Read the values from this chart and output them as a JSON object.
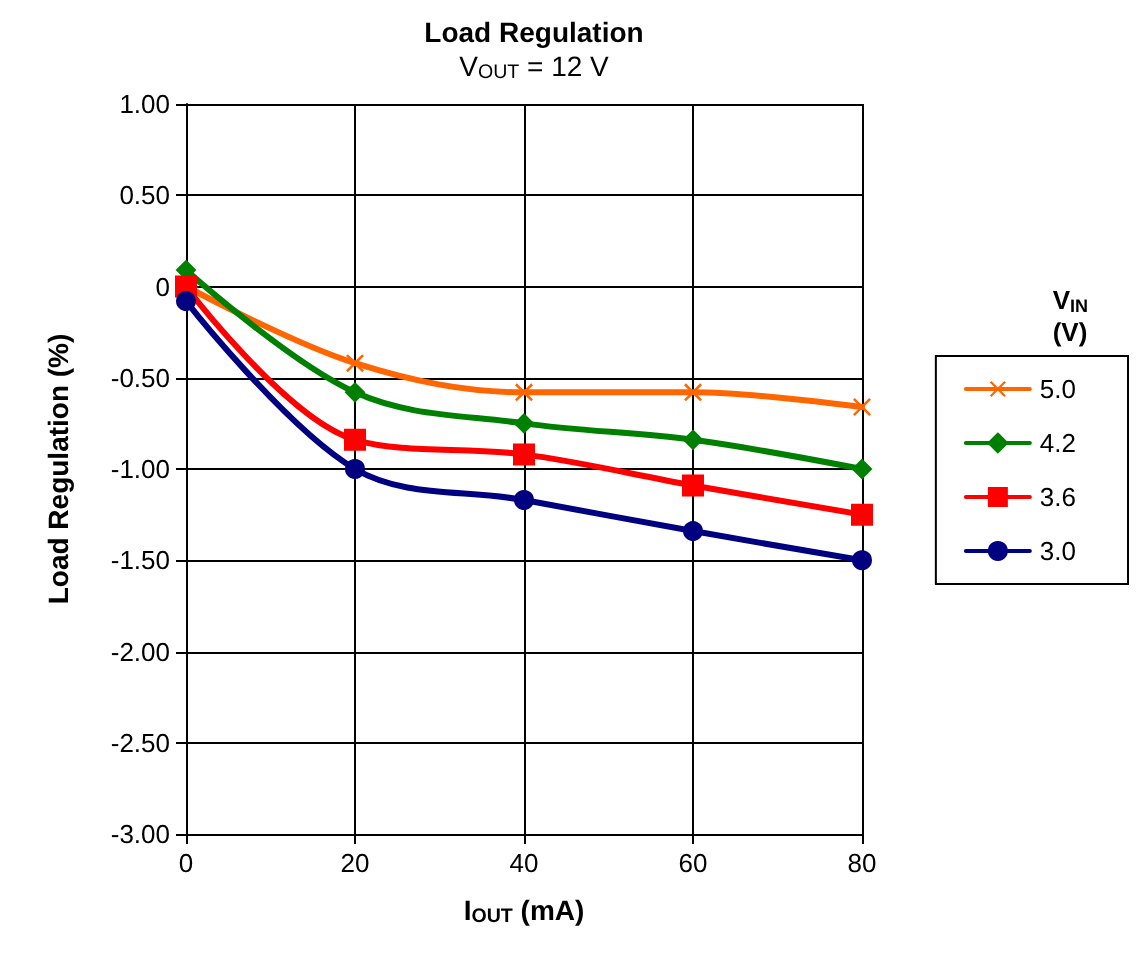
{
  "chart_data": {
    "type": "line",
    "title": "Load Regulation",
    "subtitle": "V$_{OUT}$ = 12 V",
    "xlabel": "I$_{OUT}$ (mA)",
    "ylabel": "Load Regulation (%)",
    "legend_title": "V$_{IN}$\n(V)",
    "x": [
      0,
      20,
      40,
      60,
      80
    ],
    "series": [
      {
        "name": "5.0",
        "color": "#ff6600",
        "marker": "cross",
        "values": [
          0.0,
          -0.42,
          -0.58,
          -0.58,
          -0.66
        ]
      },
      {
        "name": "4.2",
        "color": "#008000",
        "marker": "diamond",
        "values": [
          0.09,
          -0.58,
          -0.75,
          -0.84,
          -1.0
        ]
      },
      {
        "name": "3.6",
        "color": "#ff0000",
        "marker": "square",
        "values": [
          0.0,
          -0.84,
          -0.92,
          -1.09,
          -1.25
        ]
      },
      {
        "name": "3.0",
        "color": "#000080",
        "marker": "circle",
        "values": [
          -0.08,
          -1.0,
          -1.17,
          -1.34,
          -1.5
        ]
      }
    ],
    "xlim": [
      0,
      80
    ],
    "xticks": [
      0,
      20,
      40,
      60,
      80
    ],
    "ylim": [
      -3,
      1
    ],
    "yticks": [
      {
        "value": 1,
        "label": "1.00"
      },
      {
        "value": 0.5,
        "label": "0.50"
      },
      0,
      {
        "value": -0.5,
        "label": "-0.50"
      },
      {
        "value": -1,
        "label": "-1.00"
      },
      {
        "value": -1.5,
        "label": "-1.50"
      },
      {
        "value": -2,
        "label": "-2.00"
      },
      {
        "value": -2.5,
        "label": "-2.50"
      },
      {
        "value": -3,
        "label": "-3.00"
      }
    ],
    "grid": true,
    "legend": "right",
    "line_style": "solid"
  }
}
